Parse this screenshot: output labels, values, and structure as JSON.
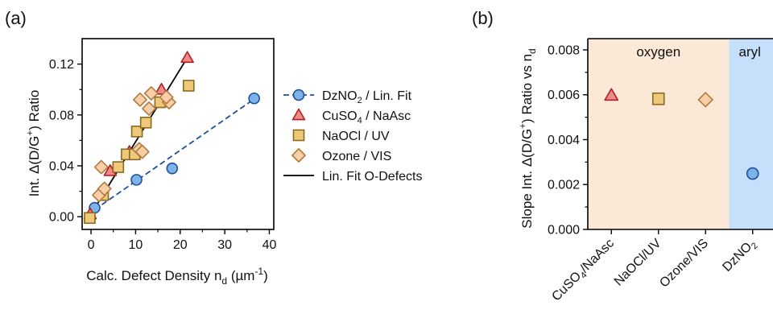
{
  "chart_data": [
    {
      "panel_label": "(a)",
      "type": "scatter",
      "xlabel_main": "Calc. Defect Density n",
      "xlabel_sub": "d",
      "xlabel_unit_pre": " (µm",
      "xlabel_unit_sup": "-1",
      "xlabel_unit_post": ")",
      "ylabel_main": "Int. Δ(D/G",
      "ylabel_sup": "+",
      "ylabel_post": ") Ratio",
      "xlim": [
        -2,
        41
      ],
      "ylim": [
        -0.01,
        0.14
      ],
      "x_ticks": [
        "0",
        "10",
        "20",
        "30",
        "40"
      ],
      "y_ticks": [
        "0.00",
        "0.04",
        "0.08",
        "0.12"
      ],
      "legend": [
        {
          "label_main": "DzNO",
          "label_sub": "2",
          "label_post": " / Lin. Fit",
          "marker": "circle"
        },
        {
          "label_main": "CuSO",
          "label_sub": "4",
          "label_post": " / NaAsc",
          "marker": "triangle"
        },
        {
          "label_main": "NaOCl / UV",
          "label_sub": "",
          "label_post": "",
          "marker": "square"
        },
        {
          "label_main": "Ozone / VIS",
          "label_sub": "",
          "label_post": "",
          "marker": "diamond"
        },
        {
          "label_main": "Lin. Fit O-Defects",
          "label_sub": "",
          "label_post": "",
          "marker": "line"
        }
      ],
      "series": [
        {
          "name": "DzNO2",
          "marker": "circle",
          "color": "#7cb4ea",
          "stroke": "#1f4e9c",
          "points": [
            [
              0.8,
              0.007
            ],
            [
              10.2,
              0.029
            ],
            [
              18.2,
              0.038
            ],
            [
              36.6,
              0.093
            ]
          ]
        },
        {
          "name": "CuSO4",
          "marker": "triangle",
          "color": "#f08a8a",
          "stroke": "#b02020",
          "points": [
            [
              -0.2,
              0.002
            ],
            [
              4.3,
              0.036
            ],
            [
              8.6,
              0.051
            ],
            [
              15.8,
              0.1
            ],
            [
              21.6,
              0.125
            ]
          ]
        },
        {
          "name": "NaOCl",
          "marker": "square",
          "color": "#efc97a",
          "stroke": "#8a6a20",
          "points": [
            [
              -0.3,
              -0.001
            ],
            [
              2.7,
              0.017
            ],
            [
              6.1,
              0.039
            ],
            [
              8.0,
              0.049
            ],
            [
              9.8,
              0.049
            ],
            [
              10.3,
              0.067
            ],
            [
              12.3,
              0.074
            ],
            [
              15.5,
              0.09
            ],
            [
              21.9,
              0.103
            ]
          ]
        },
        {
          "name": "Ozone",
          "marker": "diamond",
          "color": "#f9cfa8",
          "stroke": "#b07a40",
          "points": [
            [
              1.8,
              0.017
            ],
            [
              2.3,
              0.039
            ],
            [
              3.0,
              0.022
            ],
            [
              10.8,
              0.053
            ],
            [
              11.5,
              0.051
            ],
            [
              11.0,
              0.092
            ],
            [
              13.0,
              0.085
            ],
            [
              13.5,
              0.097
            ],
            [
              17.5,
              0.09
            ],
            [
              16.9,
              0.094
            ]
          ]
        }
      ],
      "fits": [
        {
          "name": "DzNO2 Lin. Fit",
          "style": "dashed-blue",
          "color": "#1f4e9c",
          "x": [
            0.8,
            36.6
          ],
          "y": [
            0.0055,
            0.0925
          ]
        },
        {
          "name": "Lin. Fit O-Defects",
          "style": "solid-black",
          "color": "#000000",
          "x": [
            0,
            21.6
          ],
          "y": [
            0.002,
            0.125
          ]
        }
      ]
    },
    {
      "panel_label": "(b)",
      "type": "scatter",
      "ylabel_main": "Slope Int. Δ(D/G",
      "ylabel_sup": "+",
      "ylabel_post": ") Ratio vs n",
      "ylabel_sub": "d",
      "ylim": [
        0,
        0.0085
      ],
      "y_ticks": [
        "0.000",
        "0.002",
        "0.004",
        "0.006",
        "0.008"
      ],
      "categories": [
        {
          "main": "CuSO",
          "sub": "4",
          "post": "/NaAsc"
        },
        {
          "main": "NaOCl/UV",
          "sub": "",
          "post": ""
        },
        {
          "main": "Ozone/VIS",
          "sub": "",
          "post": ""
        },
        {
          "main": "DzNO",
          "sub": "2",
          "post": ""
        }
      ],
      "regions": [
        {
          "label": "oxygen",
          "color": "#fbe8d6",
          "from": 0,
          "to": 3
        },
        {
          "label": "aryl",
          "color": "#c6dffb",
          "from": 3,
          "to": 4
        }
      ],
      "points": [
        {
          "category": 0,
          "value": 0.00598,
          "marker": "triangle",
          "color": "#f08a8a",
          "stroke": "#b02020"
        },
        {
          "category": 1,
          "value": 0.00582,
          "marker": "square",
          "color": "#efc97a",
          "stroke": "#8a6a20"
        },
        {
          "category": 2,
          "value": 0.00578,
          "marker": "diamond",
          "color": "#f9cfa8",
          "stroke": "#b07a40"
        },
        {
          "category": 3,
          "value": 0.00249,
          "marker": "circle",
          "color": "#7cb4ea",
          "stroke": "#1f4e9c"
        }
      ]
    }
  ]
}
